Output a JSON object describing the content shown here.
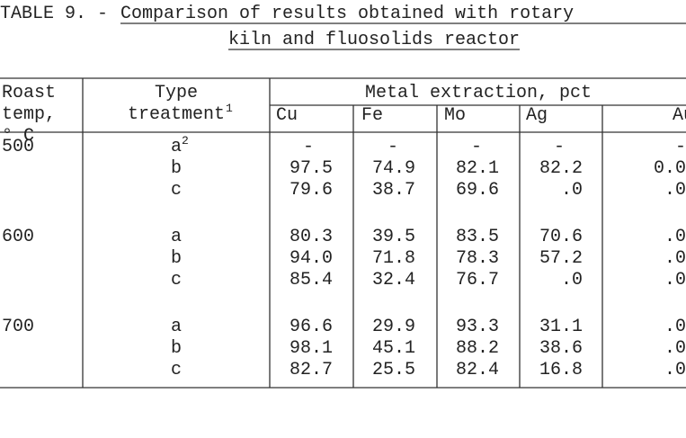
{
  "title": {
    "label": "TABLE 9. -",
    "line1": "Comparison of results obtained with rotary",
    "line2": "kiln and fluosolids reactor"
  },
  "header": {
    "roast": [
      "Roast",
      "temp,",
      "° C"
    ],
    "type": [
      "Type",
      "treatment"
    ],
    "type_note": "1",
    "group": "Metal extraction, pct",
    "metals": [
      "Cu",
      "Fe",
      "Mo",
      "Ag",
      "Au"
    ]
  },
  "groups": [
    {
      "temp": "500",
      "rows": [
        {
          "type": "a",
          "note": "2",
          "values": [
            "-",
            "-",
            "-",
            "-",
            "-"
          ]
        },
        {
          "type": "b",
          "values": [
            "97.5",
            "74.9",
            "82.1",
            "82.2",
            "0.0"
          ]
        },
        {
          "type": "c",
          "values": [
            "79.6",
            "38.7",
            "69.6",
            ".0",
            ".0"
          ]
        }
      ]
    },
    {
      "temp": "600",
      "rows": [
        {
          "type": "a",
          "values": [
            "80.3",
            "39.5",
            "83.5",
            "70.6",
            ".0"
          ]
        },
        {
          "type": "b",
          "values": [
            "94.0",
            "71.8",
            "78.3",
            "57.2",
            ".0"
          ]
        },
        {
          "type": "c",
          "values": [
            "85.4",
            "32.4",
            "76.7",
            ".0",
            ".0"
          ]
        }
      ]
    },
    {
      "temp": "700",
      "rows": [
        {
          "type": "a",
          "values": [
            "96.6",
            "29.9",
            "93.3",
            "31.1",
            ".0"
          ]
        },
        {
          "type": "b",
          "values": [
            "98.1",
            "45.1",
            "88.2",
            "38.6",
            ".0"
          ]
        },
        {
          "type": "c",
          "values": [
            "82.7",
            "25.5",
            "82.4",
            "16.8",
            ".0"
          ]
        }
      ]
    }
  ]
}
